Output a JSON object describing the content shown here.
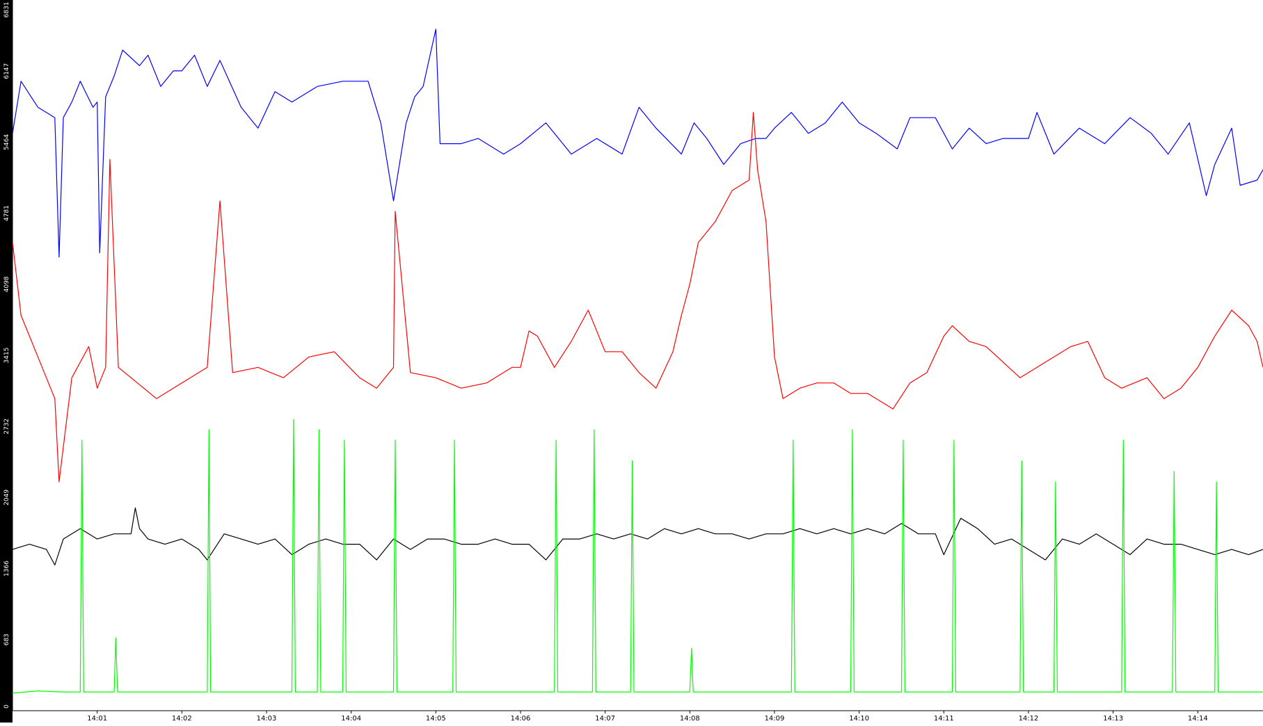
{
  "chart_data": {
    "type": "line",
    "title": "",
    "xlabel": "",
    "ylabel": "",
    "ylim": [
      0,
      6831
    ],
    "y_ticks": [
      "0",
      "683",
      "1366",
      "2049",
      "2732",
      "3415",
      "4098",
      "4781",
      "5464",
      "6147",
      "6831"
    ],
    "x_ticks": [
      "14:01",
      "14:02",
      "14:03",
      "14:04",
      "14:05",
      "14:06",
      "14:07",
      "14:08",
      "14:09",
      "14:10",
      "14:11",
      "14:12",
      "14:13",
      "14:14"
    ],
    "x_range_minutes": [
      0.0,
      14.77
    ],
    "grid": false,
    "legend": "none",
    "series": [
      {
        "color": "#0000ff",
        "x": [
          0.0,
          0.1,
          0.3,
          0.5,
          0.55,
          0.6,
          0.7,
          0.8,
          0.95,
          1.0,
          1.03,
          1.1,
          1.2,
          1.3,
          1.5,
          1.6,
          1.75,
          1.9,
          2.0,
          2.15,
          2.3,
          2.45,
          2.7,
          2.9,
          3.1,
          3.3,
          3.6,
          3.9,
          4.2,
          4.35,
          4.5,
          4.65,
          4.75,
          4.85,
          5.0,
          5.05,
          5.3,
          5.5,
          5.8,
          6.0,
          6.3,
          6.6,
          6.9,
          7.2,
          7.4,
          7.6,
          7.9,
          8.05,
          8.2,
          8.4,
          8.6,
          8.78,
          8.9,
          9.0,
          9.2,
          9.4,
          9.6,
          9.8,
          10.0,
          10.2,
          10.45,
          10.6,
          10.9,
          11.1,
          11.3,
          11.5,
          11.7,
          12.0,
          12.1,
          12.3,
          12.6,
          12.9,
          13.2,
          13.45,
          13.65,
          13.9,
          14.1,
          14.2,
          14.4,
          14.5,
          14.7,
          14.77
        ],
        "y": [
          5550,
          6050,
          5800,
          5700,
          4360,
          5700,
          5850,
          6050,
          5800,
          5850,
          4400,
          5900,
          6100,
          6350,
          6200,
          6300,
          6000,
          6150,
          6150,
          6300,
          6000,
          6250,
          5800,
          5600,
          5950,
          5850,
          6000,
          6050,
          6050,
          5650,
          4900,
          5650,
          5900,
          6000,
          6550,
          5450,
          5450,
          5500,
          5350,
          5450,
          5650,
          5350,
          5500,
          5350,
          5800,
          5600,
          5350,
          5650,
          5500,
          5250,
          5450,
          5500,
          5500,
          5600,
          5750,
          5550,
          5650,
          5850,
          5650,
          5550,
          5400,
          5700,
          5700,
          5400,
          5600,
          5450,
          5500,
          5500,
          5750,
          5350,
          5600,
          5450,
          5700,
          5550,
          5350,
          5650,
          4950,
          5250,
          5600,
          5050,
          5100,
          5200
        ]
      },
      {
        "color": "#ff0000",
        "x": [
          0.0,
          0.1,
          0.3,
          0.5,
          0.55,
          0.7,
          0.9,
          1.0,
          1.1,
          1.15,
          1.25,
          1.4,
          1.7,
          2.0,
          2.3,
          2.45,
          2.6,
          2.9,
          3.2,
          3.5,
          3.8,
          4.1,
          4.3,
          4.5,
          4.52,
          4.7,
          5.0,
          5.3,
          5.6,
          5.9,
          6.0,
          6.1,
          6.2,
          6.4,
          6.6,
          6.8,
          7.0,
          7.2,
          7.4,
          7.6,
          7.8,
          7.9,
          8.0,
          8.1,
          8.3,
          8.5,
          8.7,
          8.75,
          8.8,
          8.9,
          9.0,
          9.1,
          9.3,
          9.5,
          9.7,
          9.9,
          10.1,
          10.4,
          10.6,
          10.8,
          11.0,
          11.1,
          11.3,
          11.5,
          11.7,
          11.9,
          12.1,
          12.3,
          12.5,
          12.7,
          12.9,
          13.1,
          13.4,
          13.6,
          13.8,
          14.0,
          14.2,
          14.4,
          14.6,
          14.7,
          14.77
        ],
        "y": [
          4500,
          3800,
          3400,
          3000,
          2200,
          3200,
          3500,
          3100,
          3300,
          5300,
          3300,
          3200,
          3000,
          3150,
          3300,
          4900,
          3250,
          3300,
          3200,
          3400,
          3450,
          3200,
          3100,
          3300,
          4800,
          3250,
          3200,
          3100,
          3150,
          3300,
          3300,
          3650,
          3600,
          3300,
          3550,
          3850,
          3450,
          3450,
          3250,
          3100,
          3450,
          3800,
          4100,
          4500,
          4700,
          5000,
          5100,
          5750,
          5200,
          4700,
          3400,
          3000,
          3100,
          3150,
          3150,
          3050,
          3050,
          2900,
          3150,
          3250,
          3600,
          3700,
          3550,
          3500,
          3350,
          3200,
          3300,
          3400,
          3500,
          3550,
          3200,
          3100,
          3200,
          3000,
          3100,
          3300,
          3600,
          3850,
          3700,
          3550,
          3300
        ]
      },
      {
        "color": "#000000",
        "x": [
          0.0,
          0.2,
          0.4,
          0.5,
          0.6,
          0.8,
          1.0,
          1.2,
          1.4,
          1.45,
          1.5,
          1.6,
          1.8,
          2.0,
          2.2,
          2.3,
          2.5,
          2.7,
          2.9,
          3.1,
          3.3,
          3.5,
          3.7,
          3.9,
          4.1,
          4.3,
          4.5,
          4.7,
          4.9,
          5.1,
          5.3,
          5.5,
          5.7,
          5.9,
          6.1,
          6.3,
          6.5,
          6.7,
          6.9,
          7.1,
          7.3,
          7.5,
          7.7,
          7.9,
          8.1,
          8.3,
          8.5,
          8.7,
          8.9,
          9.1,
          9.3,
          9.5,
          9.7,
          9.9,
          10.1,
          10.3,
          10.5,
          10.7,
          10.9,
          11.0,
          11.2,
          11.4,
          11.6,
          11.8,
          12.0,
          12.2,
          12.4,
          12.6,
          12.8,
          13.0,
          13.2,
          13.4,
          13.6,
          13.8,
          14.0,
          14.2,
          14.4,
          14.6,
          14.77
        ],
        "y": [
          1550,
          1600,
          1550,
          1400,
          1650,
          1750,
          1650,
          1700,
          1700,
          1950,
          1750,
          1650,
          1600,
          1650,
          1550,
          1450,
          1700,
          1650,
          1600,
          1650,
          1500,
          1600,
          1650,
          1600,
          1600,
          1450,
          1650,
          1550,
          1650,
          1650,
          1600,
          1600,
          1650,
          1600,
          1600,
          1450,
          1650,
          1650,
          1700,
          1650,
          1700,
          1650,
          1750,
          1700,
          1750,
          1700,
          1700,
          1650,
          1700,
          1700,
          1750,
          1700,
          1750,
          1700,
          1750,
          1700,
          1800,
          1700,
          1700,
          1500,
          1850,
          1750,
          1600,
          1650,
          1550,
          1450,
          1650,
          1600,
          1700,
          1600,
          1500,
          1650,
          1600,
          1600,
          1550,
          1500,
          1550,
          1500,
          1550
        ]
      },
      {
        "color": "#00ff00",
        "x": [
          0.0,
          0.3,
          0.6,
          0.8,
          0.82,
          0.84,
          1.2,
          1.22,
          1.24,
          2.3,
          2.32,
          2.34,
          3.3,
          3.32,
          3.34,
          3.6,
          3.62,
          3.64,
          3.9,
          3.92,
          3.94,
          4.5,
          4.52,
          4.54,
          5.2,
          5.22,
          5.24,
          6.4,
          6.42,
          6.44,
          6.85,
          6.87,
          6.89,
          7.3,
          7.32,
          7.34,
          8.0,
          8.02,
          8.04,
          9.2,
          9.22,
          9.24,
          9.9,
          9.92,
          9.94,
          10.5,
          10.52,
          10.54,
          11.1,
          11.12,
          11.14,
          11.9,
          11.92,
          11.94,
          12.3,
          12.32,
          12.34,
          13.1,
          13.12,
          13.14,
          13.7,
          13.72,
          13.74,
          14.2,
          14.22,
          14.24,
          14.5,
          14.77
        ],
        "y": [
          170,
          190,
          180,
          180,
          2600,
          180,
          180,
          700,
          180,
          180,
          2700,
          180,
          180,
          2800,
          180,
          180,
          2700,
          180,
          180,
          2600,
          180,
          180,
          2600,
          180,
          180,
          2600,
          180,
          180,
          2600,
          180,
          180,
          2700,
          180,
          180,
          2400,
          180,
          180,
          600,
          180,
          180,
          2600,
          180,
          180,
          2700,
          180,
          180,
          2600,
          180,
          180,
          2600,
          180,
          180,
          2400,
          180,
          180,
          2200,
          180,
          180,
          2600,
          180,
          180,
          2300,
          180,
          180,
          2200,
          180,
          180,
          180
        ]
      }
    ]
  }
}
